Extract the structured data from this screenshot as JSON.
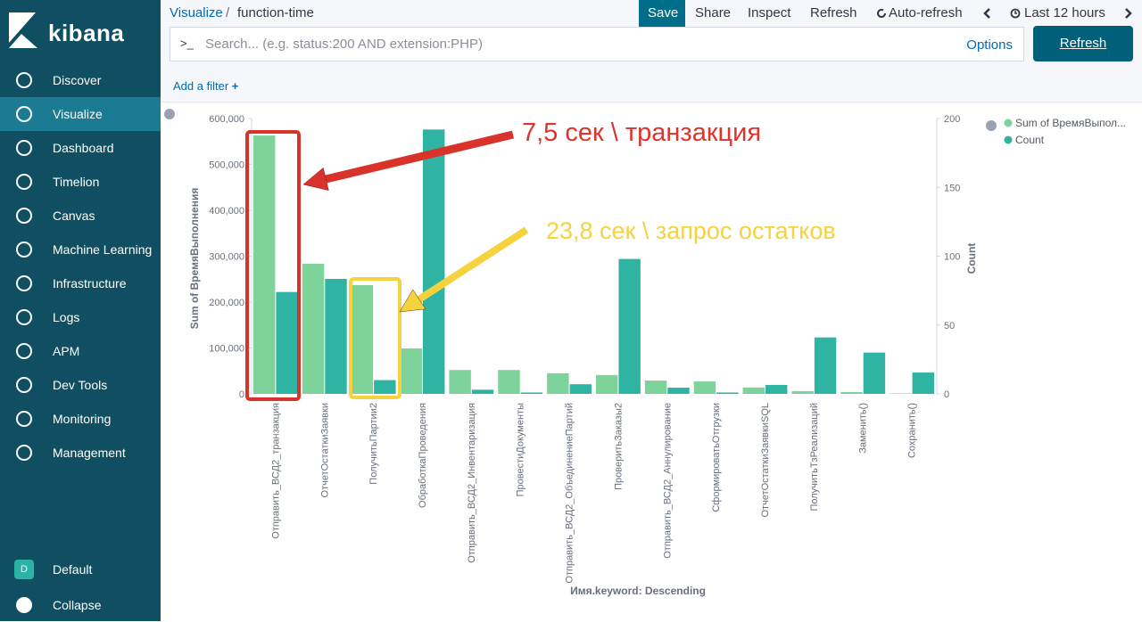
{
  "header": {
    "breadcrumbs": [
      "Visualize",
      "function-time"
    ],
    "menu": [
      "Save",
      "Share",
      "Inspect",
      "Refresh",
      "Auto-refresh",
      "Last 12 hours"
    ],
    "search_prompt": ">_",
    "search_placeholder": "Search... (e.g. status:200 AND extension:PHP)",
    "options": "Options",
    "refresh_button": "Refresh",
    "add_filter": "Add a filter"
  },
  "sidebar": {
    "logo": "kibana",
    "items": [
      "Discover",
      "Visualize",
      "Dashboard",
      "Timelion",
      "Canvas",
      "Machine Learning",
      "Infrastructure",
      "Logs",
      "APM",
      "Dev Tools",
      "Monitoring",
      "Management"
    ],
    "space_badge": "D",
    "space": "Default",
    "collapse": "Collapse"
  },
  "chart_data": {
    "type": "bar",
    "x_label": "Имя.keyword: Descending",
    "y_label": "Sum of ВремяВыполнения",
    "y2_label": "Count",
    "legend": "top-right",
    "annotations": [
      "7,5 сек \\ транзакция",
      "23,8 сек \\ запрос остатков"
    ],
    "categories": [
      "Отправить_ВСД2_транзакция",
      "ОтчетОстаткиЗаявки",
      "ПолучитьПартии2",
      "ОбработкаПроведения",
      "Отправить_ВСД2_Инвентаризация",
      "ПровестиДокументы",
      "Отправить_ВСД2_ОбъединениеПартий",
      "ПроверитьЗаказы2",
      "Отправить_ВСД2_Аннулирование",
      "СформироватьОтгрузки",
      "ОтчетОстаткиЗаявкиSQL",
      "ПолучитьТзРеализаций",
      "Заменить()",
      "Сохранить()"
    ],
    "series": [
      {
        "name": "Sum of ВремяВыполнения",
        "color": "#7dd399",
        "values": [
          563000,
          283500,
          237000,
          99000,
          52000,
          52000,
          45000,
          41000,
          29000,
          27000,
          14000,
          6000,
          4000,
          1000
        ]
      },
      {
        "name": "Count",
        "color": "#2fb3a3",
        "axis": "y2",
        "values": [
          74,
          83.5,
          10,
          192,
          3,
          1,
          7,
          98,
          4.5,
          1,
          6.5,
          41,
          30,
          15.5
        ]
      }
    ],
    "ylim": [
      0,
      600000
    ],
    "yticks": [
      0,
      {
        "value": 100000,
        "label": "100,000"
      },
      {
        "value": 200000,
        "label": "200,000"
      },
      {
        "value": 300000,
        "label": "300,000"
      },
      {
        "value": 400000,
        "label": "400,000"
      },
      {
        "value": 500000,
        "label": "500,000"
      },
      {
        "value": 600000,
        "label": "600,000"
      }
    ],
    "y2lim": [
      0,
      200
    ],
    "y2ticks": [
      0,
      50,
      100,
      150,
      200
    ]
  }
}
